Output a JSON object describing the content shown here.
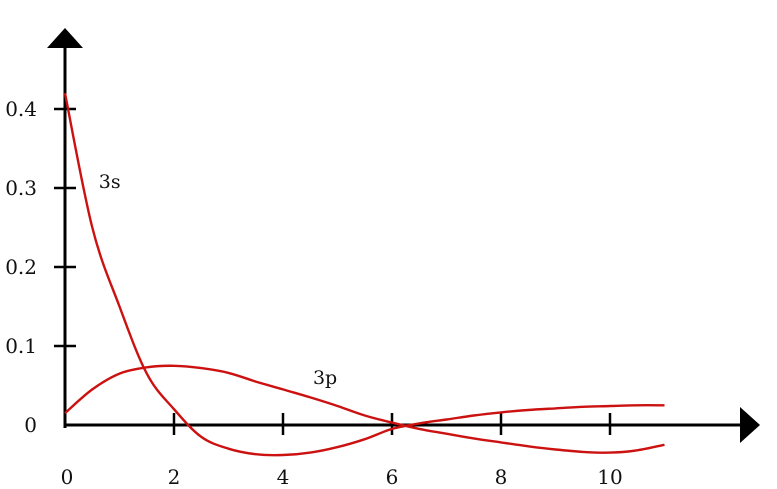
{
  "chart_data": {
    "type": "line",
    "title": "",
    "xlabel": "",
    "ylabel": "",
    "xlim": [
      0,
      12.9
    ],
    "ylim": [
      0,
      0.45
    ],
    "x_ticks": [
      0,
      2,
      4,
      6,
      8,
      10
    ],
    "x_tick_labels": [
      "0",
      "2",
      "4",
      "6",
      "8",
      "10"
    ],
    "y_ticks": [
      0,
      0.1,
      0.2,
      0.3,
      0.4
    ],
    "y_tick_labels": [
      "0",
      "0.1",
      "0.2",
      "0.3",
      "0.4"
    ],
    "grid": false,
    "legend": "none",
    "series_color": "#cc1111",
    "series": [
      {
        "name": "3s",
        "x": [
          0,
          0.5,
          1.0,
          1.5,
          2.0,
          2.5,
          3.0,
          3.5,
          4.0,
          4.5,
          5.0,
          5.5,
          6.0,
          6.5,
          7.0,
          7.5,
          8.0,
          8.5,
          9.0,
          9.5,
          10.0,
          10.5,
          11.0
        ],
        "y": [
          0.42,
          0.25,
          0.15,
          0.065,
          0.02,
          -0.015,
          -0.03,
          -0.037,
          -0.038,
          -0.035,
          -0.028,
          -0.018,
          -0.005,
          0.002,
          0.007,
          0.012,
          0.016,
          0.019,
          0.021,
          0.023,
          0.024,
          0.025,
          0.025
        ]
      },
      {
        "name": "3p",
        "x": [
          0,
          0.5,
          1.0,
          1.5,
          2.0,
          2.5,
          3.0,
          3.5,
          4.0,
          4.5,
          5.0,
          5.5,
          6.0,
          6.5,
          7.0,
          7.5,
          8.0,
          8.5,
          9.0,
          9.5,
          10.0,
          10.5,
          11.0
        ],
        "y": [
          0.015,
          0.045,
          0.065,
          0.073,
          0.075,
          0.072,
          0.066,
          0.055,
          0.045,
          0.035,
          0.024,
          0.012,
          0.003,
          -0.005,
          -0.011,
          -0.017,
          -0.022,
          -0.027,
          -0.031,
          -0.034,
          -0.035,
          -0.032,
          -0.025
        ]
      }
    ]
  }
}
